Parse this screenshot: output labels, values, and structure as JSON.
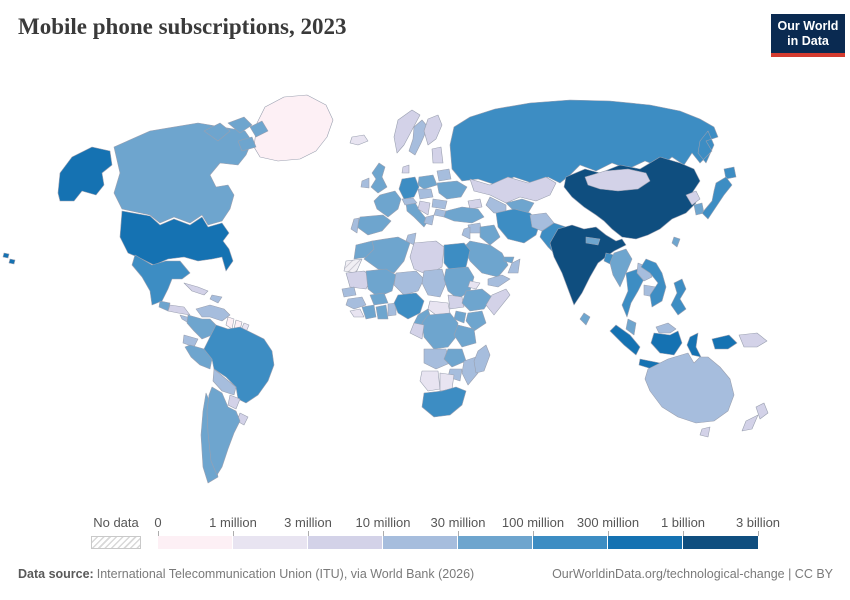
{
  "header": {
    "title": "Mobile phone subscriptions, 2023"
  },
  "logo": {
    "line1": "Our World",
    "line2": "in Data",
    "bg": "#0a2a51",
    "accent": "#d43b2f"
  },
  "legend": {
    "no_data_label": "No data",
    "tick_labels": [
      "0",
      "1 million",
      "3 million",
      "10 million",
      "30 million",
      "100 million",
      "300 million",
      "1 billion",
      "3 billion"
    ],
    "bin_colors": [
      "#fdf0f5",
      "#e8e4f1",
      "#d3d2e8",
      "#a6bddd",
      "#6ea5ce",
      "#3d8dc3",
      "#1572b2",
      "#0f4e7f"
    ]
  },
  "footer": {
    "source_label": "Data source:",
    "source_text": "International Telecommunication Union (ITU), via World Bank (2026)",
    "link_text": "OurWorldinData.org/technological-change | CC BY"
  },
  "chart_data": {
    "type": "choropleth",
    "title": "Mobile phone subscriptions, 2023",
    "legend_position": "bottom",
    "bin_ranges": [
      "0-1 million",
      "1-3 million",
      "3-10 million",
      "10-30 million",
      "30-100 million",
      "100-300 million",
      "300 million-1 billion",
      "1-3 billion"
    ],
    "regions": {
      "greenland": 0,
      "guyana": 0,
      "suriname": 0,
      "iceland": 1,
      "french-guiana": 1,
      "namibia": 1,
      "botswana": 1,
      "central-african-republic": 1,
      "eritrea": 1,
      "sierra-leone-liberia": 1,
      "norway": 2,
      "finland": 2,
      "denmark": 2,
      "baltics": 2,
      "balkans": 2,
      "mongolia": 2,
      "north-korea": 2,
      "cuba": 2,
      "papua-new-guinea": 2,
      "new-zealand-north": 2,
      "new-zealand-south": 2,
      "tasmania": 2,
      "caucasus": 2,
      "libya": 2,
      "mauritania": 2,
      "somalia": 2,
      "south-sudan": 2,
      "gabon-congo": 2,
      "paraguay": 2,
      "uruguay": 2,
      "honduras-nicaragua": 2,
      "kazakhstan": 2,
      "timor": 2,
      "sweden": 3,
      "ireland": 3,
      "portugal": 3,
      "czech-slovakia-hungary": 3,
      "belarus": 3,
      "greece": 3,
      "bulgaria": 3,
      "romania": 3,
      "laos": 3,
      "cambodia": 3,
      "bolivia": 3,
      "zimbabwe": 3,
      "angola": 3,
      "madagascar": 3,
      "niger": 3,
      "chad": 3,
      "senegal": 3,
      "guinea": 3,
      "togo-benin": 3,
      "hispaniola": 3,
      "venezuela": 3,
      "ecuador": 3,
      "australia": 3,
      "afghanistan": 3,
      "turkmenistan": 3,
      "oman": 3,
      "jordan-israel": 3,
      "tunisia": 3,
      "mozambique": 3,
      "syria": 3,
      "switzerland-austria": 3,
      "costa-rica-panama": 3,
      "yemen": 3,
      "malaysia-borneo": 3,
      "canada": 4,
      "peru": 4,
      "colombia": 4,
      "chile": 4,
      "argentina": 4,
      "united-kingdom": 4,
      "france": 4,
      "spain": 4,
      "italy": 4,
      "poland": 4,
      "ukraine": 4,
      "turkey": 4,
      "iraq": 4,
      "saudi-arabia": 4,
      "uzbekistan": 4,
      "uae": 4,
      "morocco": 4,
      "algeria": 4,
      "mali": 4,
      "burkina-faso": 4,
      "ivory-coast": 4,
      "ghana": 4,
      "cameroon": 4,
      "sudan": 4,
      "ethiopia": 4,
      "kenya": 4,
      "uganda": 4,
      "tanzania": 4,
      "drc": 4,
      "zambia": 4,
      "myanmar": 4,
      "south-korea": 4,
      "malaysia-peninsula": 4,
      "taiwan": 4,
      "nepal": 4,
      "sri-lanka": 4,
      "guatemala": 4,
      "arctic-islands": 4,
      "russia": 5,
      "brazil": 5,
      "mexico": 5,
      "nigeria": 5,
      "egypt": 5,
      "south-africa": 5,
      "germany": 5,
      "iran": 5,
      "pakistan": 5,
      "bangladesh": 5,
      "japan-hokkaido": 5,
      "japan-honshu": 5,
      "thailand": 5,
      "vietnam": 5,
      "philippines": 5,
      "united-states": 6,
      "alaska": 6,
      "hawaii": 6,
      "indonesia-sumatra": 6,
      "indonesia-java": 6,
      "indonesia-kalimantan": 6,
      "indonesia-sulawesi": 6,
      "indonesia-west-papua": 6,
      "china": 7,
      "india": 7,
      "western-sahara": "nodata"
    }
  }
}
